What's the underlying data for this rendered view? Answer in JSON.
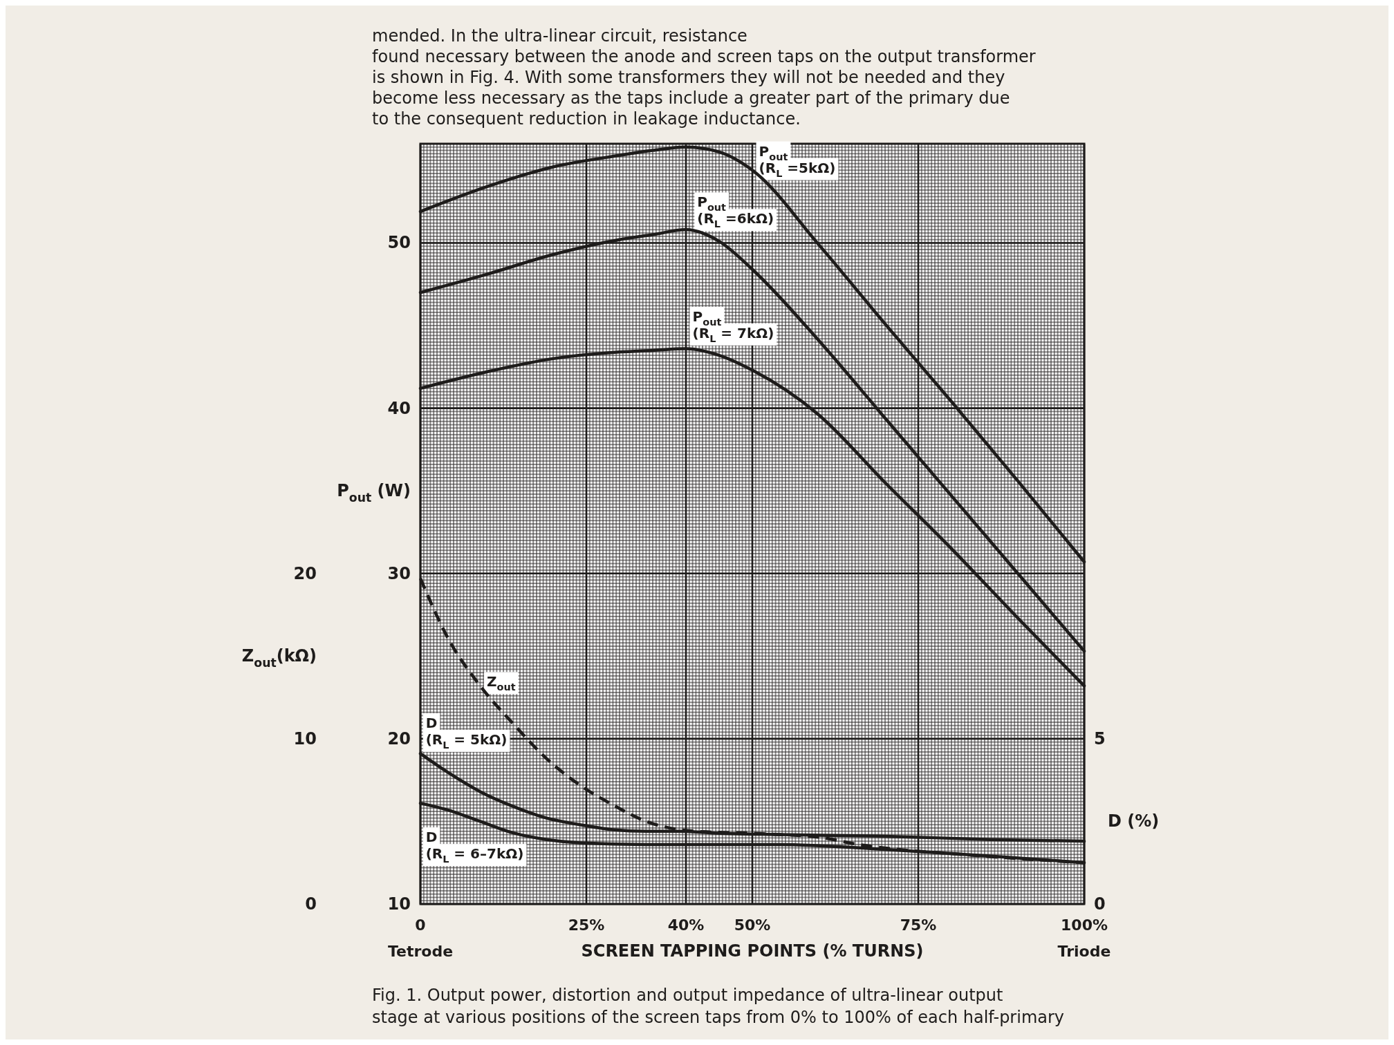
{
  "chart_data": {
    "type": "line",
    "xlabel": "SCREEN TAPPING POINTS (% TURNS)",
    "ylabel": "P$_{out}$ (W)",
    "y2label": "D (%)",
    "y3label": "Z$_{out}$(kΩ)",
    "xlim": [
      0,
      100
    ],
    "xticks": [
      {
        "value": 0,
        "label": "0"
      },
      {
        "value": 25,
        "label": "25%"
      },
      {
        "value": 40,
        "label": "40%"
      },
      {
        "value": 50,
        "label": "50%"
      },
      {
        "value": 75,
        "label": "75%"
      },
      {
        "value": 100,
        "label": "100%"
      }
    ],
    "ylim": [
      10,
      56
    ],
    "yticks": [
      10,
      20,
      30,
      40,
      50
    ],
    "y2lim": [
      0,
      23
    ],
    "y2ticks": [
      0,
      5
    ],
    "y3lim": [
      0,
      46
    ],
    "y3ticks": [
      0,
      10,
      20
    ],
    "grid": true,
    "series": [
      {
        "name": "P$_{out}$ (R$_{L}$ =5kΩ)",
        "color": "#1e1c1b",
        "x": [
          0,
          10,
          20,
          30,
          35,
          40,
          45,
          50,
          60,
          70,
          80,
          90,
          100
        ],
        "values": [
          51.9,
          53.4,
          54.6,
          55.3,
          55.6,
          55.8,
          55.5,
          54.4,
          49.9,
          45.1,
          40.4,
          35.6,
          30.7
        ]
      },
      {
        "name": "P$_{out}$ (R$_{L}$ =6kΩ)",
        "color": "#1e1c1b",
        "x": [
          0,
          10,
          20,
          30,
          35,
          40,
          45,
          50,
          60,
          70,
          80,
          90,
          100
        ],
        "values": [
          47.0,
          48.1,
          49.3,
          50.2,
          50.5,
          50.8,
          50.1,
          48.4,
          44.1,
          39.4,
          34.7,
          30.0,
          25.3
        ]
      },
      {
        "name": "P$_{out}$ (R$_{L}$ = 7kΩ)",
        "color": "#1e1c1b",
        "x": [
          0,
          10,
          20,
          30,
          35,
          40,
          45,
          50,
          60,
          70,
          80,
          90,
          100
        ],
        "values": [
          41.2,
          42.2,
          43.0,
          43.4,
          43.5,
          43.6,
          43.2,
          42.3,
          39.6,
          35.5,
          31.5,
          27.3,
          23.2
        ]
      },
      {
        "name": "D (R$_{L}$ = 5kΩ)",
        "color": "#1e1c1b",
        "axis": "y2",
        "x": [
          0,
          4,
          9,
          14,
          19,
          24,
          29,
          34,
          39,
          44,
          54,
          70,
          86,
          100
        ],
        "values": [
          4.55,
          4.0,
          3.4,
          2.95,
          2.6,
          2.4,
          2.25,
          2.2,
          2.2,
          2.15,
          2.1,
          2.05,
          1.95,
          1.9
        ]
      },
      {
        "name": "D (R$_{L}$ = 6–7kΩ)",
        "color": "#1e1c1b",
        "axis": "y2",
        "x": [
          0,
          4,
          9,
          14,
          19,
          24,
          34,
          44,
          54,
          70,
          78,
          86,
          100
        ],
        "values": [
          3.05,
          2.85,
          2.5,
          2.15,
          1.95,
          1.85,
          1.8,
          1.8,
          1.8,
          1.65,
          1.55,
          1.45,
          1.25
        ]
      },
      {
        "name": "Z$_{out}$",
        "color": "#1e1c1b",
        "axis": "y3",
        "line_style": "dashed",
        "x": [
          0,
          4,
          9,
          14,
          19,
          24,
          29,
          34,
          39,
          44,
          49,
          54,
          60,
          66,
          72,
          80,
          90,
          100
        ],
        "values": [
          19.7,
          16.2,
          13.2,
          10.9,
          8.8,
          7.2,
          6.0,
          5.0,
          4.5,
          4.35,
          4.3,
          4.2,
          4.05,
          3.6,
          3.3,
          3.05,
          2.75,
          2.5
        ]
      }
    ],
    "annotations": [
      "mended.  In the ultra-linear circuit, resistance",
      "found necessary between the anode and screen taps on the output transformer",
      "is shown in Fig. 4.  With some transformers they will not be needed and they",
      "become less necessary as the taps include a greater part of the primary due",
      "to the consequent reduction in leakage inductance.",
      "Tetrode",
      "Triode",
      "Fig. 1.  Output power, distortion and output impedance of ultra-linear output",
      "stage at various positions of the screen taps from 0% to 100% of each half-primary"
    ]
  }
}
